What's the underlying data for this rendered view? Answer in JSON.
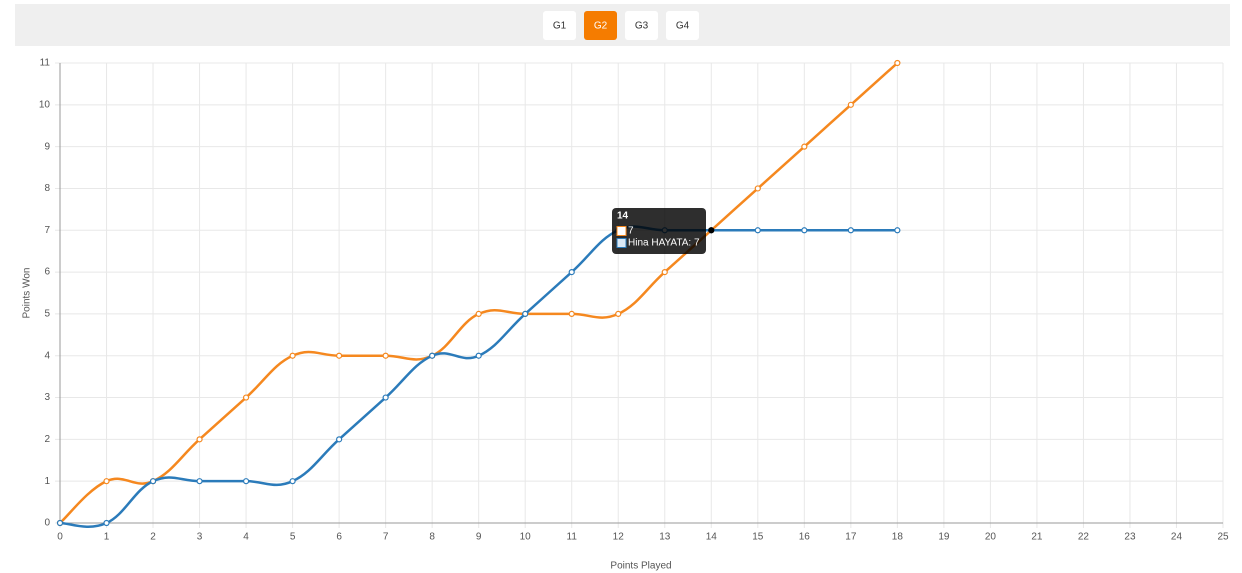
{
  "tabs": {
    "labels": [
      "G1",
      "G2",
      "G3",
      "G4"
    ],
    "active": 1,
    "active_color": "#f57c00"
  },
  "chart_data": {
    "type": "line",
    "x_label": "Points Played",
    "y_label": "Points Won",
    "x": [
      0,
      1,
      2,
      3,
      4,
      5,
      6,
      7,
      8,
      9,
      10,
      11,
      12,
      13,
      14,
      15,
      16,
      17,
      18
    ],
    "series": [
      {
        "color": "#f5881f",
        "values": [
          0,
          1,
          1,
          2,
          3,
          4,
          4,
          4,
          4,
          5,
          5,
          5,
          5,
          6,
          7,
          8,
          9,
          10,
          11
        ]
      },
      {
        "color": "#2b7bba",
        "values": [
          0,
          0,
          1,
          1,
          1,
          1,
          2,
          3,
          4,
          4,
          5,
          6,
          7,
          7,
          7,
          7,
          7,
          7,
          7
        ]
      }
    ],
    "xlim": [
      0,
      25
    ],
    "xticks": [
      0,
      1,
      2,
      3,
      4,
      5,
      6,
      7,
      8,
      9,
      10,
      11,
      12,
      13,
      14,
      15,
      16,
      17,
      18,
      19,
      20,
      21,
      22,
      23,
      24,
      25
    ],
    "ylim": [
      0,
      11
    ],
    "yticks": [
      0,
      1,
      2,
      3,
      4,
      5,
      6,
      7,
      8,
      9,
      10,
      11
    ],
    "grid": true,
    "smooth": true,
    "tooltip": {
      "index": 14,
      "title": "14",
      "items": [
        "7",
        "Hina HAYATA: 7"
      ]
    }
  }
}
